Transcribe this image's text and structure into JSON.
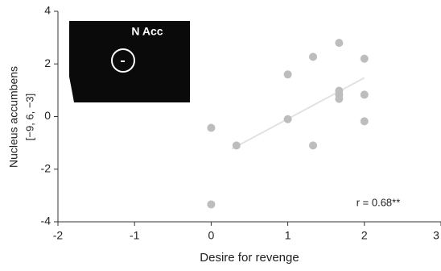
{
  "chart_data": {
    "type": "scatter",
    "xlabel": "Desire for revenge",
    "ylabel": [
      "Nucleus accumbens",
      "[−9, 6, −3]"
    ],
    "inset_label": "N Acc",
    "annotation": "r = 0.68**",
    "series": [
      {
        "color": "#bdbdbd",
        "x": [
          0,
          0.33,
          1,
          1,
          1.33,
          1.33,
          1.67,
          1.67,
          1.67,
          1.67,
          2,
          2,
          2,
          0
        ],
        "values": [
          -0.43,
          -1.1,
          -0.1,
          1.6,
          2.27,
          -1.1,
          2.8,
          0.98,
          0.83,
          0.67,
          2.2,
          0.83,
          -0.18,
          -3.34
        ]
      }
    ],
    "trend_line": {
      "color": "#e2e2e2",
      "x": [
        0.27,
        2
      ],
      "values": [
        -1.23,
        1.47
      ]
    },
    "xlim": [
      -2,
      3
    ],
    "xticks": [
      -2,
      -1,
      0,
      1,
      2,
      3
    ],
    "ylim": [
      -4,
      4
    ],
    "yticks": [
      -4,
      -2,
      0,
      2,
      4
    ]
  }
}
